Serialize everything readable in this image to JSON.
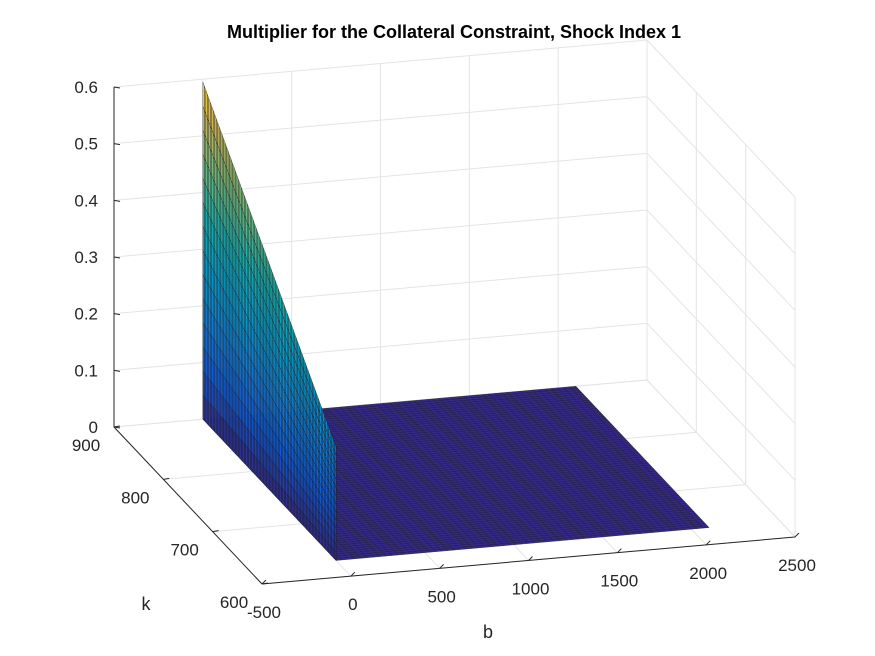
{
  "chart_data": {
    "type": "surface",
    "title": "Multiplier for the Collateral Constraint, Shock Index 1",
    "xlabel": "b",
    "ylabel": "k",
    "zlabel": "",
    "xlim": [
      -500,
      2500
    ],
    "ylim": [
      600,
      900
    ],
    "zlim": [
      0,
      0.6
    ],
    "xticks": [
      "-500",
      "0",
      "500",
      "1000",
      "1500",
      "2000",
      "2500"
    ],
    "yticks": [
      "600",
      "700",
      "800",
      "900"
    ],
    "zticks": [
      "0",
      "0.1",
      "0.2",
      "0.3",
      "0.4",
      "0.5",
      "0.6"
    ],
    "grid": true,
    "colormap": "parula",
    "surface": {
      "b_range": [
        0,
        2100
      ],
      "k_range": [
        630,
        900
      ],
      "wall_b": 0,
      "multiplier_at_k_min": 0.2,
      "multiplier_at_k_max": 0.595,
      "multiplier_elsewhere": 0
    }
  }
}
